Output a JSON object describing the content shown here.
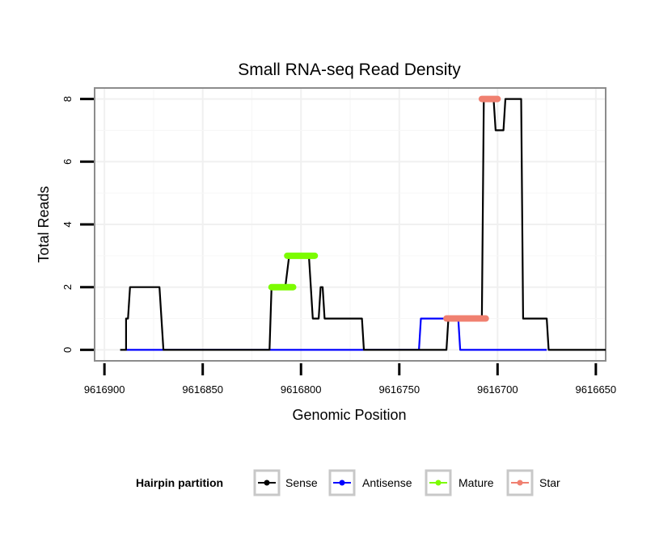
{
  "chart_data": {
    "type": "line",
    "title": "Small RNA-seq Read Density",
    "xlabel": "Genomic Position",
    "ylabel": "Total Reads",
    "xlim": [
      9616905,
      9616645
    ],
    "ylim": [
      -0.35,
      8.35
    ],
    "x_ticks": [
      9616900,
      9616850,
      9616800,
      9616750,
      9616700,
      9616650
    ],
    "x_tick_labels": [
      "9616900",
      "9616850",
      "9616800",
      "9616750",
      "9616700",
      "9616650"
    ],
    "y_ticks": [
      0,
      2,
      4,
      6,
      8
    ],
    "y_tick_labels": [
      "0",
      "2",
      "4",
      "6",
      "8"
    ],
    "series": [
      {
        "name": "Sense",
        "color": "#000000",
        "points": [
          [
            9616892,
            0
          ],
          [
            9616889,
            0
          ],
          [
            9616889,
            1
          ],
          [
            9616888,
            1
          ],
          [
            9616887,
            2
          ],
          [
            9616872,
            2
          ],
          [
            9616870,
            0
          ],
          [
            9616816,
            0
          ],
          [
            9616815,
            2
          ],
          [
            9616808,
            2
          ],
          [
            9616806,
            3
          ],
          [
            9616796,
            3
          ],
          [
            9616794,
            1
          ],
          [
            9616791,
            1
          ],
          [
            9616790,
            2
          ],
          [
            9616789,
            2
          ],
          [
            9616788,
            1
          ],
          [
            9616769,
            1
          ],
          [
            9616768,
            0
          ],
          [
            9616726,
            0
          ],
          [
            9616725,
            1
          ],
          [
            9616708,
            1
          ],
          [
            9616707,
            8
          ],
          [
            9616702,
            8
          ],
          [
            9616701,
            7
          ],
          [
            9616697,
            7
          ],
          [
            9616696,
            8
          ],
          [
            9616688,
            8
          ],
          [
            9616687,
            1
          ],
          [
            9616675,
            1
          ],
          [
            9616674,
            0
          ],
          [
            9616645,
            0
          ]
        ]
      },
      {
        "name": "Antisense",
        "color": "#0000ff",
        "points": [
          [
            9616889,
            0
          ],
          [
            9616769,
            0
          ],
          [
            9616740,
            0
          ],
          [
            9616739,
            1
          ],
          [
            9616720,
            1
          ],
          [
            9616719,
            0
          ],
          [
            9616675,
            0
          ]
        ]
      },
      {
        "name": "Mature",
        "color": "#7cfc00",
        "segments": [
          {
            "x0": 9616815,
            "x1": 9616804,
            "y": 2
          },
          {
            "x0": 9616807,
            "x1": 9616793,
            "y": 3
          }
        ]
      },
      {
        "name": "Star",
        "color": "#f08070",
        "segments": [
          {
            "x0": 9616726,
            "x1": 9616706,
            "y": 1
          },
          {
            "x0": 9616708,
            "x1": 9616700,
            "y": 8
          }
        ]
      }
    ],
    "grid": true,
    "legend": {
      "title": "Hairpin partition",
      "position": "bottom",
      "entries": [
        {
          "label": "Sense",
          "color": "#000000"
        },
        {
          "label": "Antisense",
          "color": "#0000ff"
        },
        {
          "label": "Mature",
          "color": "#7cfc00"
        },
        {
          "label": "Star",
          "color": "#f08070"
        }
      ]
    }
  }
}
